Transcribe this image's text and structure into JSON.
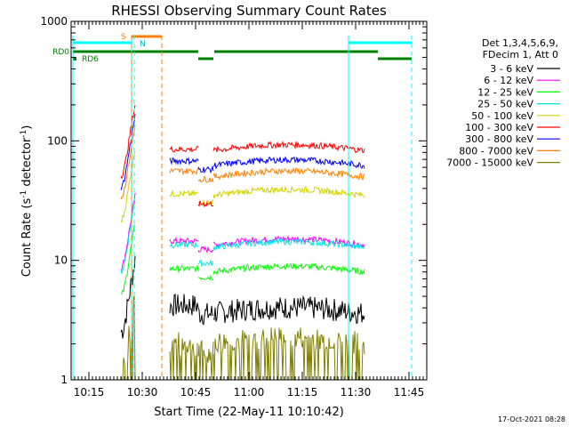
{
  "chart_data": {
    "type": "line",
    "title": "RHESSI Observing Summary Count Rates",
    "xlabel": "Start Time (22-May-11 10:10:42)",
    "ylabel_main": "Count Rate (s",
    "ylabel_sup1": "-1",
    "ylabel_mid": " detector",
    "ylabel_sup2": "-1",
    "ylabel_end": ")",
    "y_scale": "log",
    "ylim": [
      1,
      1000
    ],
    "x_ticks": [
      "10:15",
      "10:30",
      "10:45",
      "11:00",
      "11:15",
      "11:30",
      "11:45"
    ],
    "y_ticks": [
      "1",
      "10",
      "100",
      "1000"
    ],
    "legend_header": [
      "Det 1,3,4,5,6,9,",
      "FDecim 1, Att 0"
    ],
    "footer_date": "17-Oct-2021 08:28",
    "flags": {
      "rd0": "RD0",
      "rd6": "RD6",
      "saa": "S",
      "night": "N"
    },
    "series": [
      {
        "name": "3 - 6 keV",
        "color": "#000000",
        "level": 4.2,
        "level2": 3.6
      },
      {
        "name": "6 - 12 keV",
        "color": "#ff00ff",
        "level": 14.5,
        "level2": 13.5
      },
      {
        "name": "12 - 25 keV",
        "color": "#00ff00",
        "level": 8.5,
        "level2": 8.0
      },
      {
        "name": "25 - 50 keV",
        "color": "#00e6e6",
        "level": 13.5,
        "level2": 12.8
      },
      {
        "name": "50 - 100 keV",
        "color": "#d4d400",
        "level": 36,
        "level2": 35
      },
      {
        "name": "100 - 300 keV",
        "color": "#ff0000",
        "level": 85,
        "level2": 83
      },
      {
        "name": "300 - 800 keV",
        "color": "#0000ff",
        "level": 68,
        "level2": 62
      },
      {
        "name": "800 - 7000 keV",
        "color": "#ff8000",
        "level": 56,
        "level2": 50
      },
      {
        "name": "7000 - 15000 keV",
        "color": "#808000",
        "level": 2.0,
        "level2": 2.0
      }
    ]
  }
}
